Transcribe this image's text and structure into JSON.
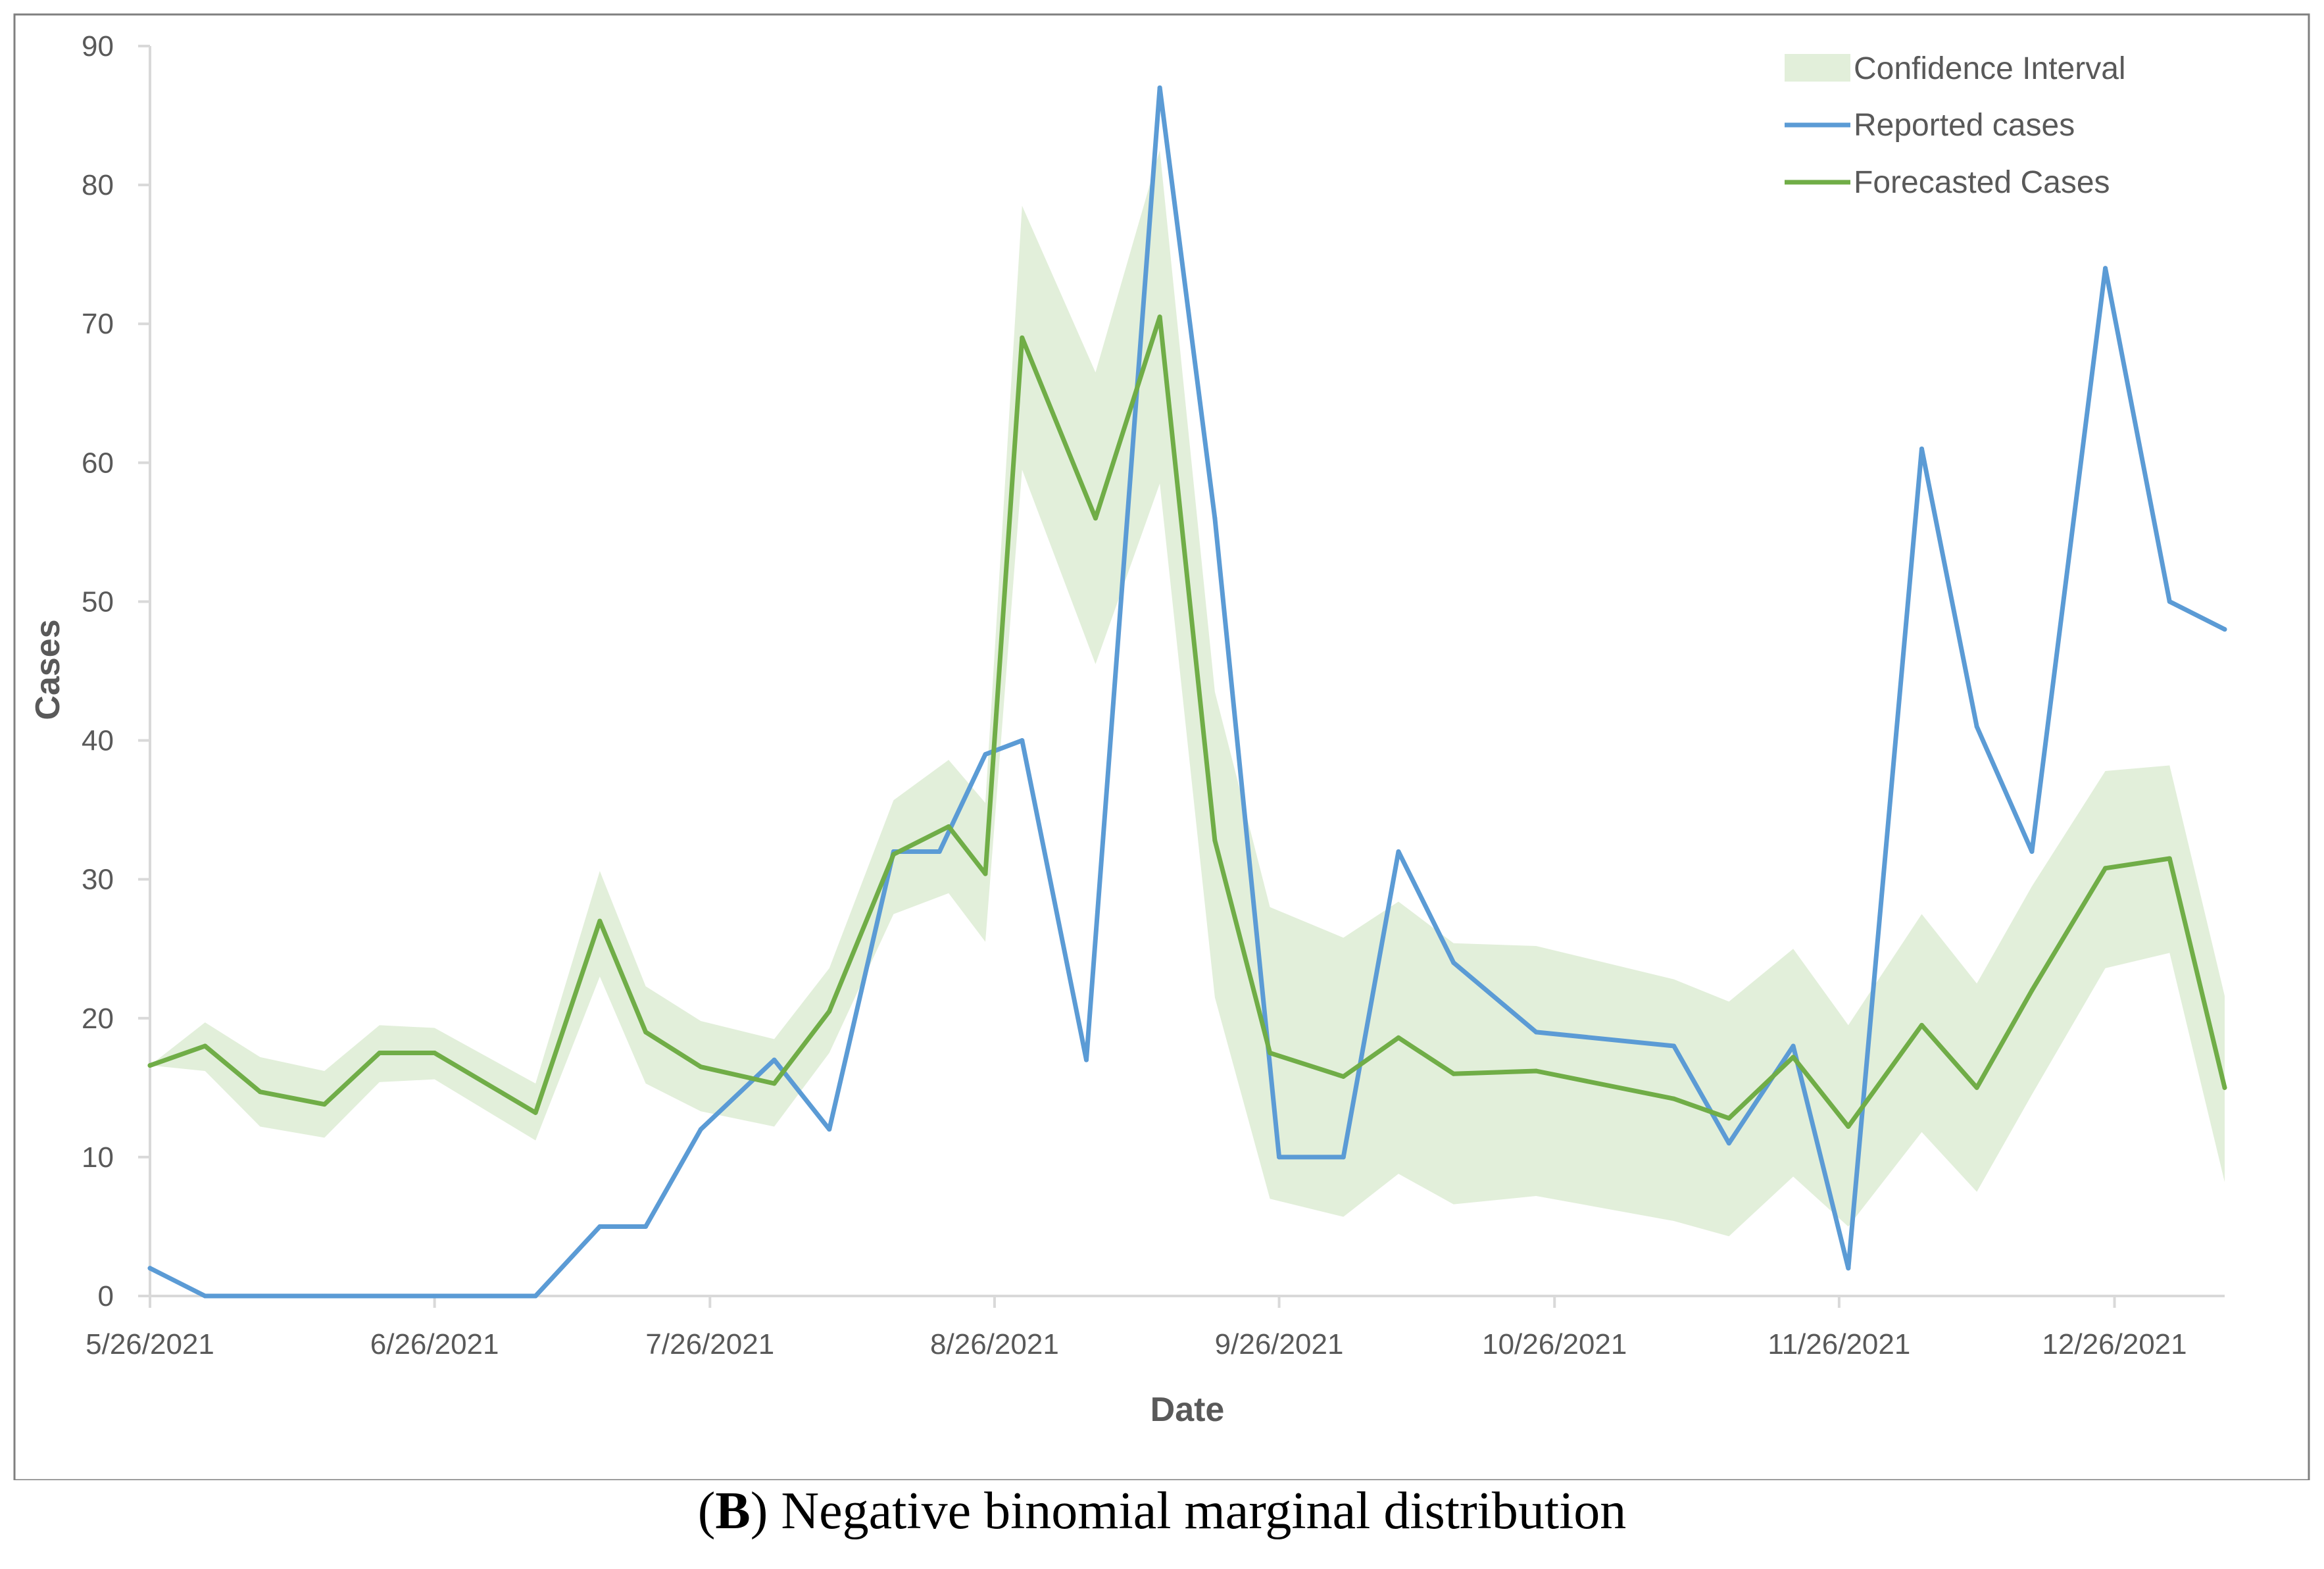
{
  "colors": {
    "reported": "#5B9BD5",
    "forecast": "#70AD47",
    "ci_fill": "#E2EFDA",
    "axis": "#D9D9D9",
    "text": "#595959",
    "frame": "#7F7F7F"
  },
  "caption": {
    "letter": "B",
    "open": "(",
    "close": ")",
    "text": " Negative binomial marginal distribution"
  },
  "chart_data": {
    "type": "line",
    "title": "",
    "xlabel": "Date",
    "ylabel": "Cases",
    "ylim": [
      0,
      90
    ],
    "yticks": [
      0,
      10,
      20,
      30,
      40,
      50,
      60,
      70,
      80,
      90
    ],
    "x_range_days": [
      0,
      226
    ],
    "x_start_date": "5/26/2021",
    "x_ticks": [
      {
        "day": 0,
        "label": "5/26/2021"
      },
      {
        "day": 31,
        "label": "6/26/2021"
      },
      {
        "day": 61,
        "label": "7/26/2021"
      },
      {
        "day": 92,
        "label": "8/26/2021"
      },
      {
        "day": 123,
        "label": "9/26/2021"
      },
      {
        "day": 153,
        "label": "10/26/2021"
      },
      {
        "day": 184,
        "label": "11/26/2021"
      },
      {
        "day": 214,
        "label": "12/26/2021"
      }
    ],
    "grid": false,
    "legend_position": "top-right",
    "legend": [
      "Confidence Interval",
      "Reported cases",
      "Forecasted Cases"
    ],
    "series": [
      {
        "name": "Reported cases",
        "x": [
          0,
          6,
          12,
          19,
          25,
          31,
          37,
          42,
          49,
          54,
          60,
          68,
          74,
          81,
          86,
          91,
          95,
          102,
          110,
          116,
          123,
          130,
          136,
          142,
          151,
          166,
          172,
          179,
          185,
          193,
          199,
          205,
          213,
          220,
          226
        ],
        "values": [
          2,
          0,
          0,
          0,
          0,
          0,
          0,
          0,
          5,
          5,
          12,
          17,
          12,
          32,
          32,
          39,
          40,
          17,
          87,
          56,
          10,
          10,
          32,
          24,
          19,
          18,
          11,
          18,
          2,
          61,
          41,
          32,
          74,
          50,
          48
        ]
      },
      {
        "name": "Forecasted Cases",
        "x": [
          0,
          6,
          12,
          19,
          25,
          31,
          42,
          49,
          54,
          60,
          68,
          74,
          81,
          87,
          91,
          95,
          103,
          110,
          116,
          122,
          130,
          136,
          142,
          151,
          166,
          172,
          179,
          185,
          193,
          199,
          205,
          213,
          220,
          226
        ],
        "values": [
          16.6,
          18,
          14.7,
          13.8,
          17.5,
          17.5,
          13.2,
          27,
          19,
          16.5,
          15.3,
          20.5,
          31.8,
          33.8,
          30.4,
          69,
          56,
          70.5,
          32.8,
          17.5,
          15.8,
          18.6,
          16,
          16.2,
          14.2,
          12.8,
          17.2,
          12.2,
          19.5,
          15,
          22,
          30.8,
          31.5,
          15
        ]
      },
      {
        "name": "Confidence Interval",
        "x": [
          0,
          6,
          12,
          19,
          25,
          31,
          42,
          49,
          54,
          60,
          68,
          74,
          81,
          87,
          91,
          95,
          103,
          110,
          116,
          122,
          130,
          136,
          142,
          151,
          166,
          172,
          179,
          185,
          193,
          199,
          205,
          213,
          220,
          226
        ],
        "lower": [
          16.6,
          16.2,
          12.2,
          11.4,
          15.4,
          15.6,
          11.2,
          23,
          15.3,
          13.3,
          12.2,
          17.5,
          27.5,
          29,
          25.5,
          59.5,
          45.5,
          58.5,
          21.5,
          7,
          5.7,
          8.8,
          6.6,
          7.2,
          5.4,
          4.3,
          8.6,
          5,
          11.8,
          7.5,
          14.5,
          23.6,
          24.7,
          8.2
        ],
        "upper": [
          16.6,
          19.7,
          17.2,
          16.2,
          19.5,
          19.3,
          15.3,
          30.6,
          22.3,
          19.8,
          18.5,
          23.6,
          35.7,
          38.6,
          35.5,
          78.5,
          66.5,
          82.5,
          43.5,
          28,
          25.8,
          28.4,
          25.4,
          25.2,
          22.8,
          21.2,
          25,
          19.5,
          27.5,
          22.5,
          29.5,
          37.8,
          38.2,
          21.6
        ]
      }
    ]
  }
}
